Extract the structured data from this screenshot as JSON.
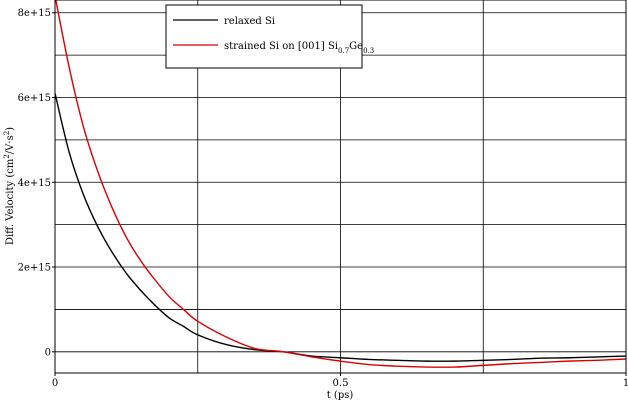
{
  "colors": {
    "background": "#ffffff",
    "axis": "#000000",
    "grid": "#000000",
    "series_relaxed": "#000000",
    "series_strained": "#dd0000"
  },
  "chart_data": {
    "type": "line",
    "title": "",
    "xlabel": "t (ps)",
    "ylabel_parts": {
      "prefix": "Diff. Velocity (cm",
      "sup1": "2",
      "mid": "/V·s",
      "sup2": "2",
      "suffix": ")"
    },
    "xlim": [
      0,
      1
    ],
    "ylim": [
      -500000000000000.0,
      8300000000000000.0
    ],
    "x_ticks": [
      {
        "value": 0,
        "label": "0"
      },
      {
        "value": 0.5,
        "label": "0.5"
      },
      {
        "value": 1,
        "label": "1"
      }
    ],
    "y_ticks": [
      {
        "value": 0,
        "label": "0"
      },
      {
        "value": 2000000000000000.0,
        "label": "2e+15"
      },
      {
        "value": 4000000000000000.0,
        "label": "4e+15"
      },
      {
        "value": 6000000000000000.0,
        "label": "6e+15"
      },
      {
        "value": 8000000000000000.0,
        "label": "8e+15"
      }
    ],
    "x_grid": [
      0.25,
      0.5,
      0.75
    ],
    "y_grid": [
      0,
      1000000000000000.0,
      2000000000000000.0,
      3000000000000000.0,
      4000000000000000.0,
      5000000000000000.0,
      6000000000000000.0,
      7000000000000000.0,
      8000000000000000.0
    ],
    "grid": true,
    "legend_position": "top-center",
    "series": [
      {
        "name": "relaxed Si",
        "color": "#000000",
        "x": [
          0,
          0.025,
          0.05,
          0.075,
          0.1,
          0.125,
          0.15,
          0.175,
          0.2,
          0.225,
          0.25,
          0.3,
          0.35,
          0.4,
          0.45,
          0.5,
          0.55,
          0.6,
          0.65,
          0.7,
          0.75,
          0.8,
          0.85,
          0.9,
          0.95,
          1.0
        ],
        "y": [
          6100000000000000.0,
          4700000000000000.0,
          3700000000000000.0,
          2950000000000000.0,
          2350000000000000.0,
          1850000000000000.0,
          1450000000000000.0,
          1100000000000000.0,
          800000000000000.0,
          600000000000000.0,
          400000000000000.0,
          170000000000000.0,
          50000000000000.0,
          0.0,
          -100000000000000.0,
          -140000000000000.0,
          -180000000000000.0,
          -200000000000000.0,
          -220000000000000.0,
          -220000000000000.0,
          -200000000000000.0,
          -180000000000000.0,
          -150000000000000.0,
          -140000000000000.0,
          -120000000000000.0,
          -100000000000000.0
        ]
      },
      {
        "name": "strained Si on  [001] Si0.7Ge0.3",
        "legend_parts": {
          "prefix": "strained Si on  [001] Si",
          "sub1": "0.7",
          "mid": "Ge",
          "sub2": "0.3"
        },
        "color": "#dd0000",
        "x": [
          0,
          0.025,
          0.05,
          0.075,
          0.1,
          0.125,
          0.15,
          0.175,
          0.2,
          0.225,
          0.25,
          0.3,
          0.35,
          0.4,
          0.45,
          0.5,
          0.55,
          0.6,
          0.65,
          0.7,
          0.75,
          0.8,
          0.85,
          0.9,
          0.95,
          1.0
        ],
        "y": [
          8400000000000000.0,
          6700000000000000.0,
          5300000000000000.0,
          4250000000000000.0,
          3400000000000000.0,
          2700000000000000.0,
          2150000000000000.0,
          1700000000000000.0,
          1300000000000000.0,
          1000000000000000.0,
          720000000000000.0,
          350000000000000.0,
          80000000000000.0,
          0.0,
          -120000000000000.0,
          -220000000000000.0,
          -300000000000000.0,
          -340000000000000.0,
          -360000000000000.0,
          -360000000000000.0,
          -320000000000000.0,
          -280000000000000.0,
          -250000000000000.0,
          -220000000000000.0,
          -200000000000000.0,
          -170000000000000.0
        ]
      }
    ]
  }
}
